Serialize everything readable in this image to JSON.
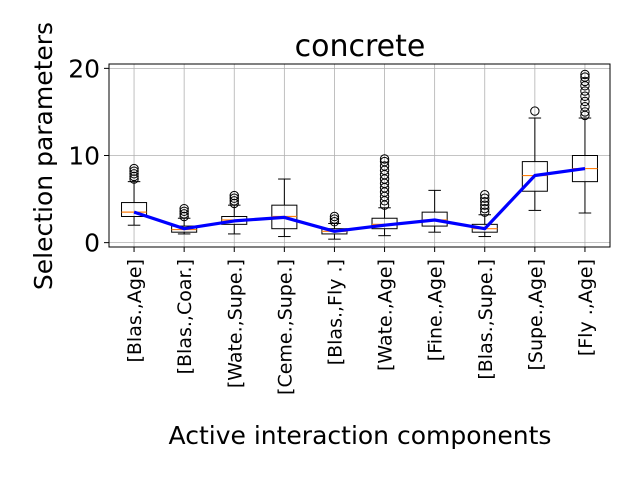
{
  "chart_data": {
    "type": "box",
    "title": "concrete",
    "xlabel": "Active interaction components",
    "ylabel": "Selection parameters",
    "ylim": [
      -0.5,
      20.5
    ],
    "yticks": [
      0,
      10,
      20
    ],
    "grid": true,
    "categories": [
      "[Blas.,Age]",
      "[Blas.,Coar.]",
      "[Wate.,Supe.]",
      "[Ceme.,Supe.]",
      "[Blas.,Fly .]",
      "[Wate.,Age]",
      "[Fine.,Age]",
      "[Blas.,Supe.]",
      "[Supe.,Age]",
      "[Fly .,Age]"
    ],
    "boxes": [
      {
        "whisker_low": 2.0,
        "q1": 3.0,
        "median": 3.5,
        "q3": 4.6,
        "whisker_high": 7.0,
        "outliers": [
          7.3,
          7.6,
          7.9,
          8.2,
          8.5
        ]
      },
      {
        "whisker_low": 1.0,
        "q1": 1.2,
        "median": 1.5,
        "q3": 1.9,
        "whisker_high": 2.8,
        "outliers": [
          3.0,
          3.3,
          3.6,
          3.9
        ]
      },
      {
        "whisker_low": 1.0,
        "q1": 2.1,
        "median": 2.6,
        "q3": 3.0,
        "whisker_high": 4.3,
        "outliers": [
          4.5,
          4.8,
          5.1,
          5.4
        ]
      },
      {
        "whisker_low": 0.7,
        "q1": 1.6,
        "median": 3.0,
        "q3": 4.3,
        "whisker_high": 7.3,
        "outliers": []
      },
      {
        "whisker_low": 0.4,
        "q1": 1.0,
        "median": 1.3,
        "q3": 1.6,
        "whisker_high": 2.2,
        "outliers": [
          2.4,
          2.7,
          3.0
        ]
      },
      {
        "whisker_low": 0.8,
        "q1": 1.6,
        "median": 2.1,
        "q3": 2.8,
        "whisker_high": 4.0,
        "outliers": [
          4.3,
          4.8,
          5.3,
          5.8,
          6.3,
          6.8,
          7.3,
          7.8,
          8.3,
          8.8,
          9.3,
          9.6
        ]
      },
      {
        "whisker_low": 1.2,
        "q1": 1.9,
        "median": 2.6,
        "q3": 3.5,
        "whisker_high": 6.0,
        "outliers": []
      },
      {
        "whisker_low": 0.7,
        "q1": 1.2,
        "median": 1.6,
        "q3": 2.1,
        "whisker_high": 3.2,
        "outliers": [
          3.5,
          3.9,
          4.3,
          4.7,
          5.1,
          5.5
        ]
      },
      {
        "whisker_low": 3.7,
        "q1": 5.9,
        "median": 7.7,
        "q3": 9.3,
        "whisker_high": 14.3,
        "outliers": [
          15.1
        ]
      },
      {
        "whisker_low": 3.4,
        "q1": 7.0,
        "median": 8.5,
        "q3": 10.0,
        "whisker_high": 14.3,
        "outliers": [
          14.6,
          15.0,
          15.6,
          16.2,
          16.8,
          17.4,
          18.0,
          18.5,
          19.0,
          19.3
        ]
      }
    ],
    "mean_line": [
      3.5,
      1.6,
      2.5,
      2.9,
      1.3,
      2.0,
      2.6,
      1.6,
      7.7,
      8.5
    ],
    "colors": {
      "box": "#000000",
      "median": "#ff7f0e",
      "line": "#0000ff",
      "grid": "#b0b0b0"
    }
  }
}
